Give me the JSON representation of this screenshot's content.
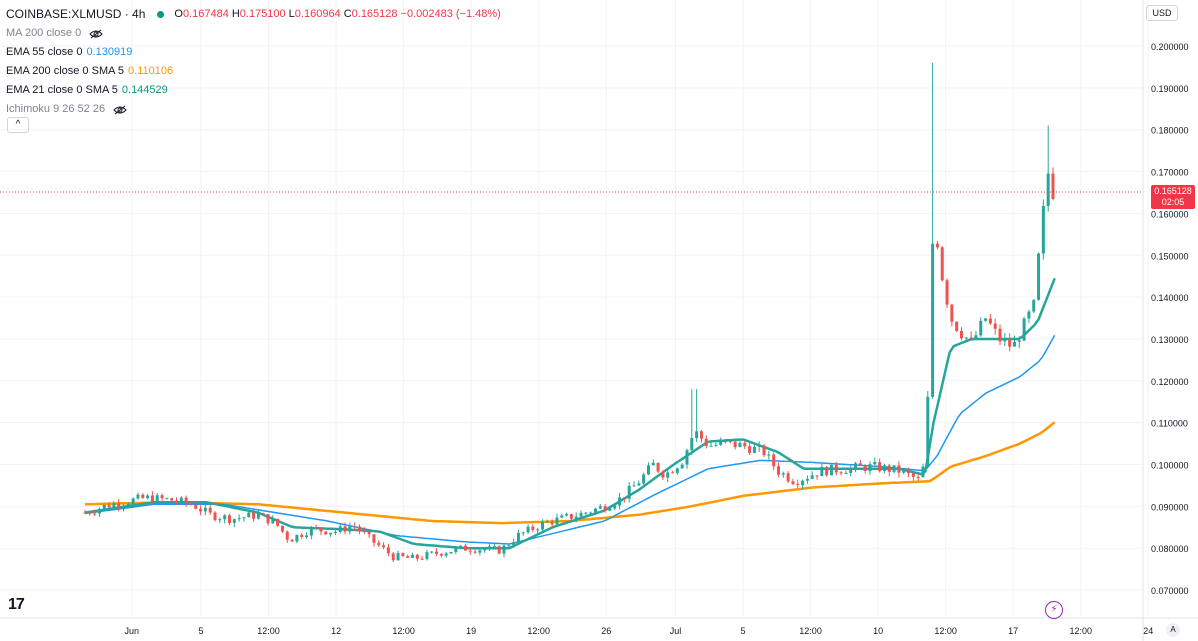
{
  "legend": {
    "symbol": "COINBASE:XLMUSD · 4h",
    "o_label": "O",
    "o_value": "0.167484",
    "h_label": "H",
    "h_value": "0.175100",
    "l_label": "L",
    "l_value": "0.160964",
    "c_label": "C",
    "c_value": "0.165128",
    "change": "−0.002483 (−1.48%)",
    "indicators": [
      {
        "name": "MA 200 close 0",
        "value": "",
        "color": "#7f8390",
        "hidden": true
      },
      {
        "name": "EMA 55 close 0",
        "value": "0.130919",
        "color": "#2196f3",
        "hidden": false
      },
      {
        "name": "EMA 200 close 0 SMA 5",
        "value": "0.110106",
        "color": "#ff9800",
        "hidden": false
      },
      {
        "name": "EMA 21 close 0 SMA 5",
        "value": "0.144529",
        "color": "#089981",
        "hidden": false
      },
      {
        "name": "Ichimoku 9 26 52 26",
        "value": "",
        "color": "#7f8390",
        "hidden": true
      }
    ],
    "collapse_glyph": "^"
  },
  "currency": "USD",
  "last_price": {
    "value": "0.165128",
    "countdown": "02:05",
    "color": "#f23645"
  },
  "colors": {
    "up": "#26a69a",
    "down": "#ef5350",
    "ema21": "#26a69a",
    "ema55": "#2196f3",
    "ema200": "#ff9800",
    "grid": "#f0f3fa"
  },
  "chart_data": {
    "type": "candlestick",
    "y_ticks": [
      "0.070000",
      "0.080000",
      "0.090000",
      "0.100000",
      "0.110000",
      "0.120000",
      "0.130000",
      "0.140000",
      "0.150000",
      "0.160000",
      "0.170000",
      "0.180000",
      "0.190000",
      "0.200000"
    ],
    "ylim": [
      0.066,
      0.203
    ],
    "x_ticks": [
      {
        "label": "Jun",
        "t": 0.27
      },
      {
        "label": "5",
        "t": 0.67
      },
      {
        "label": "12:00",
        "t": 1.06
      },
      {
        "label": "12",
        "t": 1.45
      },
      {
        "label": "12:00",
        "t": 1.84
      },
      {
        "label": "19",
        "t": 2.23
      },
      {
        "label": "12:00",
        "t": 2.62
      },
      {
        "label": "26",
        "t": 3.01
      },
      {
        "label": "Jul",
        "t": 3.41
      },
      {
        "label": "5",
        "t": 3.8
      },
      {
        "label": "12:00",
        "t": 4.19
      },
      {
        "label": "10",
        "t": 4.58
      },
      {
        "label": "12:00",
        "t": 4.97
      },
      {
        "label": "17",
        "t": 5.36
      },
      {
        "label": "12:00",
        "t": 5.75
      },
      {
        "label": "24",
        "t": 6.14
      }
    ],
    "close_anchors": [
      [
        0.0,
        0.0885
      ],
      [
        0.15,
        0.0905
      ],
      [
        0.35,
        0.092
      ],
      [
        0.5,
        0.0915
      ],
      [
        0.62,
        0.0905
      ],
      [
        0.72,
        0.088
      ],
      [
        0.85,
        0.087
      ],
      [
        1.0,
        0.088
      ],
      [
        1.1,
        0.086
      ],
      [
        1.18,
        0.082
      ],
      [
        1.3,
        0.0845
      ],
      [
        1.45,
        0.084
      ],
      [
        1.55,
        0.0855
      ],
      [
        1.65,
        0.082
      ],
      [
        1.78,
        0.078
      ],
      [
        1.9,
        0.0775
      ],
      [
        2.05,
        0.079
      ],
      [
        2.2,
        0.08
      ],
      [
        2.4,
        0.0795
      ],
      [
        2.5,
        0.083
      ],
      [
        2.65,
        0.086
      ],
      [
        2.85,
        0.088
      ],
      [
        3.0,
        0.09
      ],
      [
        3.1,
        0.092
      ],
      [
        3.2,
        0.096
      ],
      [
        3.28,
        0.1
      ],
      [
        3.35,
        0.0975
      ],
      [
        3.45,
        0.101
      ],
      [
        3.52,
        0.108
      ],
      [
        3.6,
        0.1045
      ],
      [
        3.7,
        0.105
      ],
      [
        3.8,
        0.1045
      ],
      [
        3.92,
        0.103
      ],
      [
        4.0,
        0.0985
      ],
      [
        4.1,
        0.096
      ],
      [
        4.25,
        0.0985
      ],
      [
        4.4,
        0.099
      ],
      [
        4.55,
        0.0995
      ],
      [
        4.7,
        0.0985
      ],
      [
        4.83,
        0.096
      ],
      [
        4.86,
        0.106
      ],
      [
        4.9,
        0.16
      ],
      [
        4.95,
        0.145
      ],
      [
        5.0,
        0.135
      ],
      [
        5.05,
        0.132
      ],
      [
        5.12,
        0.129
      ],
      [
        5.2,
        0.135
      ],
      [
        5.28,
        0.13
      ],
      [
        5.36,
        0.128
      ],
      [
        5.42,
        0.133
      ],
      [
        5.48,
        0.138
      ],
      [
        5.52,
        0.155
      ],
      [
        5.56,
        0.17
      ],
      [
        5.59,
        0.1651
      ]
    ],
    "wick_notes": {
      "spike_high": 0.196,
      "spike_t": 4.9,
      "late_high": 0.181,
      "jun_high": 0.118
    },
    "ema21": [
      [
        0.0,
        0.0885
      ],
      [
        0.4,
        0.091
      ],
      [
        0.7,
        0.091
      ],
      [
        1.0,
        0.0885
      ],
      [
        1.2,
        0.085
      ],
      [
        1.5,
        0.0845
      ],
      [
        1.7,
        0.084
      ],
      [
        1.9,
        0.081
      ],
      [
        2.2,
        0.08
      ],
      [
        2.45,
        0.08
      ],
      [
        2.7,
        0.085
      ],
      [
        3.0,
        0.089
      ],
      [
        3.2,
        0.094
      ],
      [
        3.4,
        0.1
      ],
      [
        3.6,
        0.1055
      ],
      [
        3.8,
        0.106
      ],
      [
        4.0,
        0.103
      ],
      [
        4.15,
        0.099
      ],
      [
        4.4,
        0.099
      ],
      [
        4.7,
        0.099
      ],
      [
        4.85,
        0.0975
      ],
      [
        4.9,
        0.11
      ],
      [
        5.0,
        0.128
      ],
      [
        5.12,
        0.13
      ],
      [
        5.25,
        0.13
      ],
      [
        5.4,
        0.13
      ],
      [
        5.5,
        0.134
      ],
      [
        5.6,
        0.1445
      ]
    ],
    "ema55": [
      [
        0.0,
        0.0883
      ],
      [
        0.4,
        0.0905
      ],
      [
        0.8,
        0.0905
      ],
      [
        1.1,
        0.0885
      ],
      [
        1.4,
        0.0865
      ],
      [
        1.8,
        0.083
      ],
      [
        2.2,
        0.0815
      ],
      [
        2.45,
        0.081
      ],
      [
        2.7,
        0.0835
      ],
      [
        3.0,
        0.0865
      ],
      [
        3.3,
        0.093
      ],
      [
        3.6,
        0.099
      ],
      [
        3.9,
        0.101
      ],
      [
        4.2,
        0.1005
      ],
      [
        4.6,
        0.0995
      ],
      [
        4.85,
        0.0985
      ],
      [
        4.92,
        0.102
      ],
      [
        5.05,
        0.112
      ],
      [
        5.2,
        0.117
      ],
      [
        5.4,
        0.121
      ],
      [
        5.52,
        0.125
      ],
      [
        5.6,
        0.1309
      ]
    ],
    "ema200": [
      [
        0.0,
        0.0905
      ],
      [
        0.5,
        0.091
      ],
      [
        1.0,
        0.0905
      ],
      [
        1.5,
        0.0885
      ],
      [
        2.0,
        0.0865
      ],
      [
        2.4,
        0.086
      ],
      [
        2.8,
        0.0865
      ],
      [
        3.2,
        0.088
      ],
      [
        3.5,
        0.09
      ],
      [
        3.8,
        0.0925
      ],
      [
        4.2,
        0.0945
      ],
      [
        4.6,
        0.0955
      ],
      [
        4.88,
        0.096
      ],
      [
        5.0,
        0.0995
      ],
      [
        5.2,
        0.102
      ],
      [
        5.4,
        0.105
      ],
      [
        5.52,
        0.1075
      ],
      [
        5.6,
        0.1101
      ]
    ]
  }
}
